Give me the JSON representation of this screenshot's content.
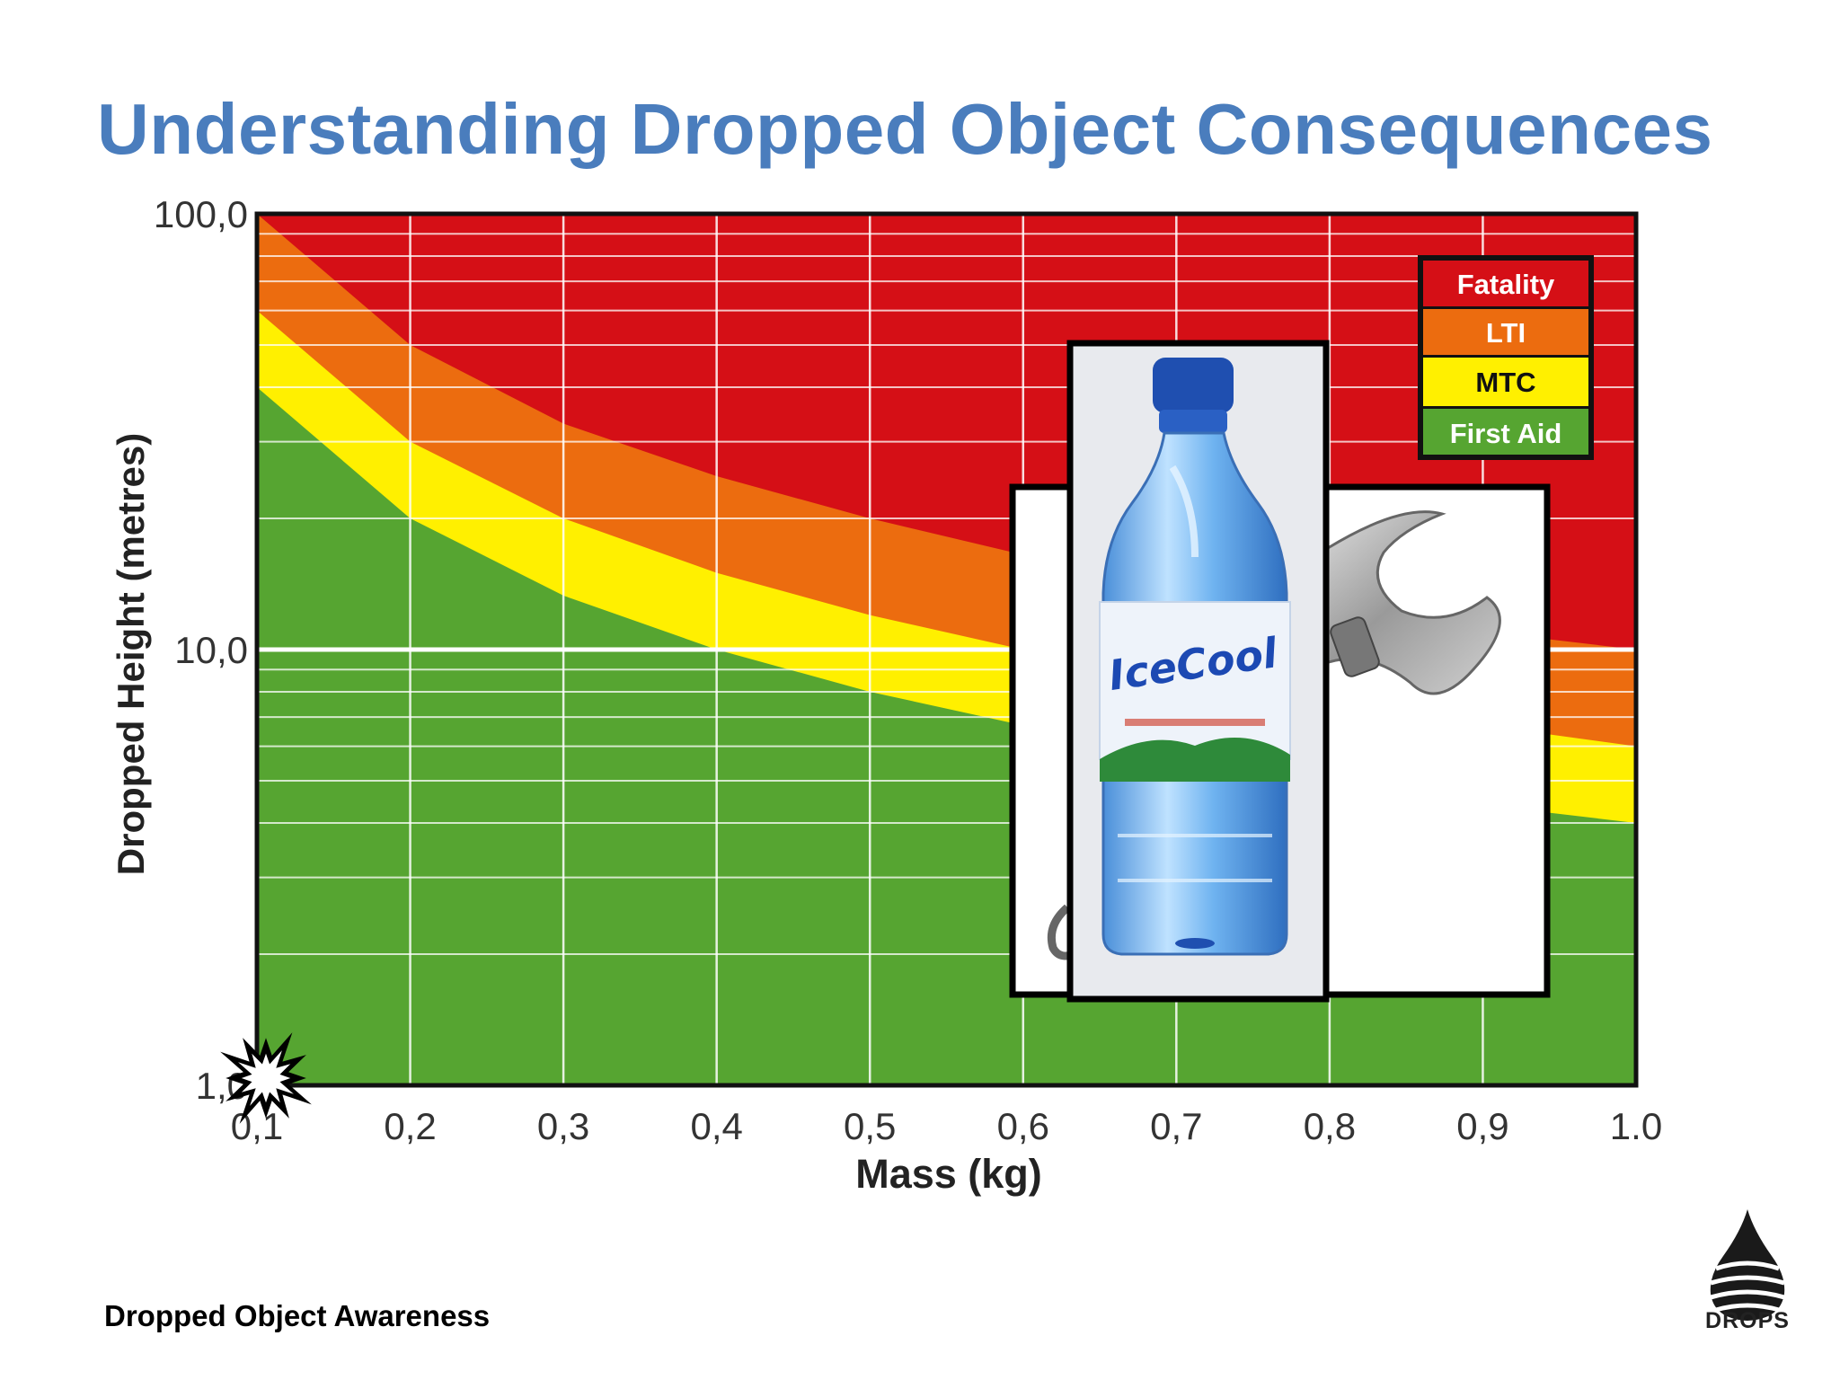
{
  "slide": {
    "title": "Understanding Dropped Object Consequences",
    "footer": "Dropped Object Awareness",
    "logo_text": "DROPS"
  },
  "colors": {
    "title": "#4a7dbd",
    "fatality": "#d50f16",
    "lti": "#ec6c0f",
    "mtc": "#fff000",
    "first_aid": "#56a531",
    "grid": "#ffffff"
  },
  "icons": [
    "water-bottle-photo-icon",
    "adjustable-wrench-photo-icon",
    "impact-burst-icon",
    "drops-droplet-logo-icon"
  ],
  "photo_text": {
    "bottle_brand": "IceCool"
  },
  "chart_data": {
    "type": "area",
    "x_scale": "linear",
    "y_scale": "log",
    "xlim": [
      0.1,
      1.0
    ],
    "ylim": [
      1.0,
      100.0
    ],
    "xlabel": "Mass (kg)",
    "ylabel": "Dropped Height (metres)",
    "x_ticks": [
      0.1,
      0.2,
      0.3,
      0.4,
      0.5,
      0.6,
      0.7,
      0.8,
      0.9,
      1.0
    ],
    "x_tick_labels": [
      "0,1",
      "0,2",
      "0,3",
      "0,4",
      "0,5",
      "0,6",
      "0,7",
      "0,8",
      "0,9",
      "1.0"
    ],
    "y_ticks": [
      1.0,
      10.0,
      100.0
    ],
    "y_tick_labels": [
      "1,0",
      "10,0",
      "100,0"
    ],
    "grid": true,
    "legend_position": "top-right",
    "legend": [
      "Fatality",
      "LTI",
      "MTC",
      "First Aid"
    ],
    "boundaries": [
      {
        "name": "Fatality",
        "note": "lower boundary of Fatality zone",
        "x": [
          0.1,
          0.2,
          0.3,
          0.4,
          0.5,
          0.6,
          0.7,
          0.8,
          0.9,
          1.0
        ],
        "y": [
          100.0,
          50.0,
          33.0,
          25.0,
          20.0,
          16.5,
          14.0,
          12.5,
          11.0,
          10.0
        ]
      },
      {
        "name": "LTI",
        "note": "lower boundary of LTI zone",
        "x": [
          0.1,
          0.2,
          0.3,
          0.4,
          0.5,
          0.6,
          0.7,
          0.8,
          0.9,
          1.0
        ],
        "y": [
          60.0,
          30.0,
          20.0,
          15.0,
          12.0,
          10.0,
          8.6,
          7.5,
          6.7,
          6.0
        ]
      },
      {
        "name": "MTC",
        "note": "lower boundary of MTC zone",
        "x": [
          0.1,
          0.2,
          0.3,
          0.4,
          0.5,
          0.6,
          0.7,
          0.8,
          0.9,
          1.0
        ],
        "y": [
          40.0,
          20.0,
          13.3,
          10.0,
          8.0,
          6.7,
          5.7,
          5.0,
          4.4,
          4.0
        ]
      }
    ]
  }
}
